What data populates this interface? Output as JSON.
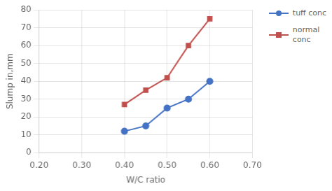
{
  "chart_data": {
    "type": "line",
    "x": [
      0.4,
      0.45,
      0.5,
      0.55,
      0.6
    ],
    "series": [
      {
        "name": "tuff conc",
        "color": "#4472C4",
        "marker": "circle",
        "values": [
          12,
          15,
          25,
          30,
          40
        ]
      },
      {
        "name": "normal\nconc",
        "color": "#C0504D",
        "marker": "square",
        "values": [
          27,
          35,
          42,
          60,
          75
        ]
      }
    ],
    "x_label": "W/C ratio",
    "y_label": "Slump in,mm",
    "xlim": [
      0.2,
      0.7
    ],
    "xticks": [
      {
        "value": 0.2,
        "label": "0.20"
      },
      {
        "value": 0.3,
        "label": "0.30"
      },
      {
        "value": 0.4,
        "label": "0.40"
      },
      {
        "value": 0.5,
        "label": "0.50"
      },
      {
        "value": 0.6,
        "label": "0.60"
      },
      {
        "value": 0.7,
        "label": "0.70"
      }
    ],
    "ylim": [
      0,
      80
    ],
    "yticks": [
      0,
      10,
      20,
      30,
      40,
      50,
      60,
      70,
      80
    ],
    "grid": true,
    "legend": "upper right"
  }
}
